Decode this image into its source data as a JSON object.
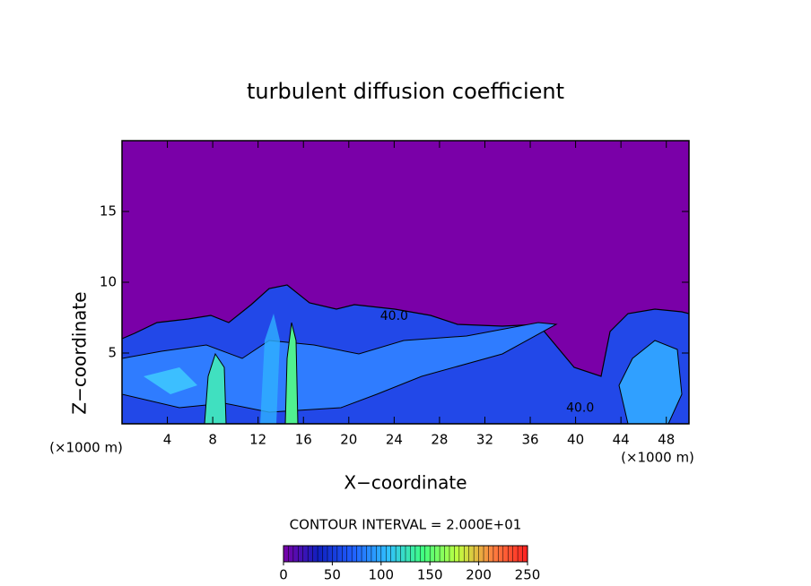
{
  "chart_data": {
    "type": "contour",
    "title": "turbulent diffusion coefficient",
    "xlabel": "X−coordinate",
    "ylabel": "Z−coordinate",
    "x_unit": "(×1000 m)",
    "xlim": [
      0,
      50
    ],
    "xticks": [
      4,
      8,
      12,
      16,
      20,
      24,
      28,
      32,
      36,
      40,
      44,
      48
    ],
    "ylim": [
      0,
      20
    ],
    "yticks": [
      5,
      10,
      15
    ],
    "background_color": "#7a00a8",
    "contour_labels": [
      {
        "text": "40.0",
        "x": 24,
        "y": 7.6
      },
      {
        "text": "40.0",
        "x": 40.4,
        "y": 1.1
      }
    ],
    "contour_interval": "CONTOUR INTERVAL = 2.000E+01",
    "colorbar": {
      "lim": [
        0,
        250
      ],
      "ticks": [
        0,
        50,
        100,
        150,
        200,
        250
      ],
      "colors": [
        "#7a00a8",
        "#1020c0",
        "#2060ff",
        "#30c0ff",
        "#40ff80",
        "#c0ff40",
        "#ff8040",
        "#ff2020"
      ]
    }
  }
}
